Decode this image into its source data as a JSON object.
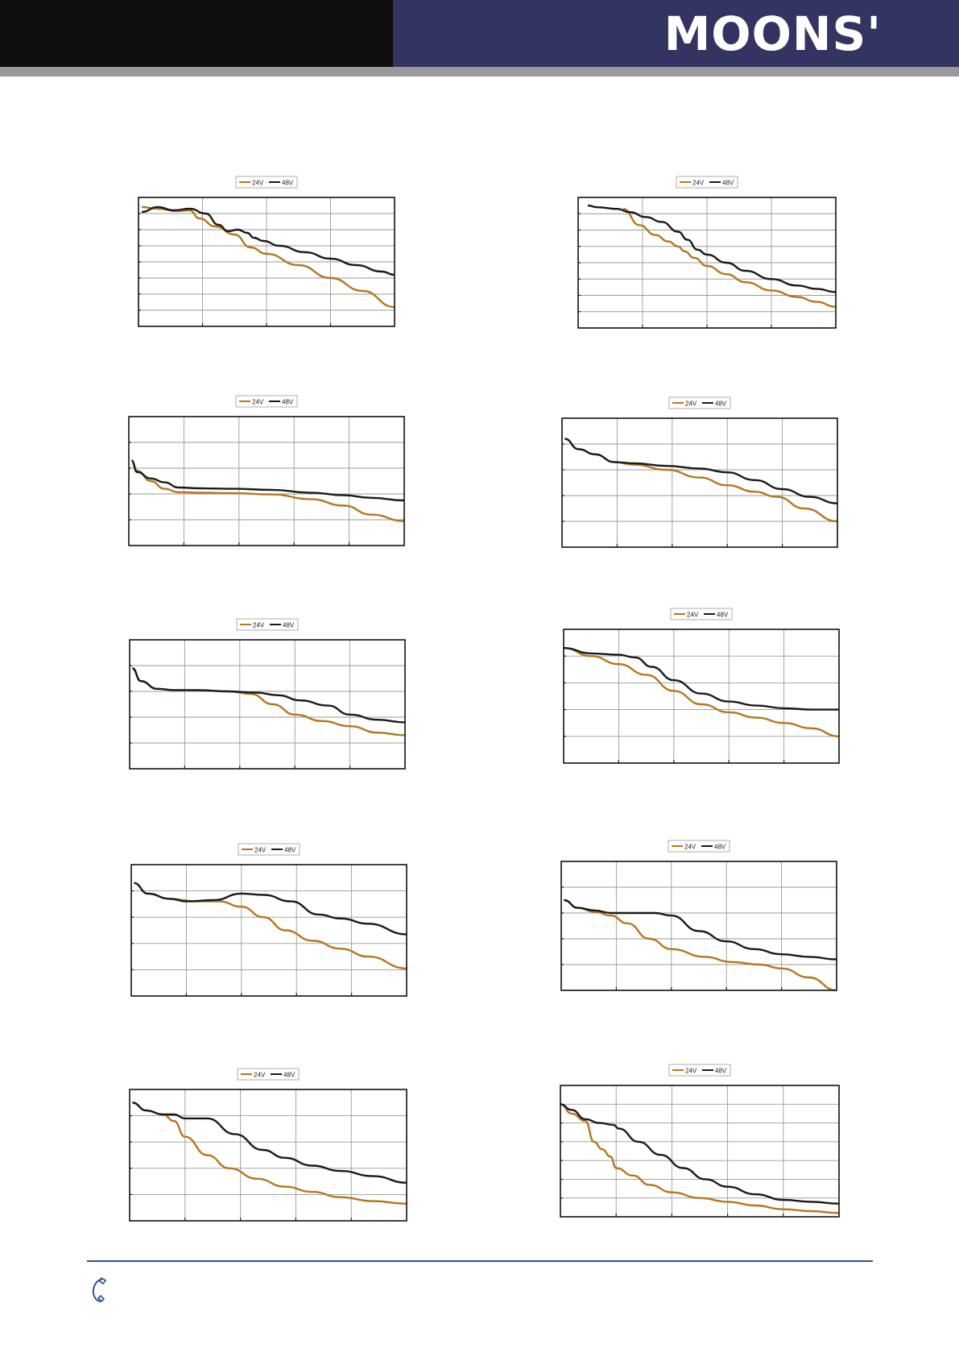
{
  "header": {
    "brand": "MOONS'",
    "colors": {
      "left_band": "#0e0e0e",
      "right_band": "#343462",
      "strip": "#9a9a9a"
    }
  },
  "series_colors": {
    "24V": "#b5761f",
    "48V": "#1a1a1a"
  },
  "footer": {
    "icon": "phone-icon",
    "line_color": "#2f4d9a"
  },
  "chart_data": [
    {
      "type": "line",
      "grid": true,
      "legend": "top-center",
      "cols": 4,
      "rows": 8,
      "xlim": [
        0,
        4
      ],
      "ylim": [
        0,
        8
      ],
      "series": [
        {
          "name": "24V",
          "x": [
            0.05,
            0.3,
            0.6,
            0.8,
            0.95,
            1.2,
            1.5,
            1.75,
            2.0,
            2.5,
            3.0,
            3.5,
            4.0
          ],
          "y": [
            7.4,
            7.3,
            7.15,
            7.2,
            6.7,
            6.2,
            5.7,
            4.9,
            4.5,
            3.8,
            3.0,
            2.2,
            1.2
          ]
        },
        {
          "name": "48V",
          "x": [
            0.05,
            0.3,
            0.55,
            0.8,
            1.05,
            1.25,
            1.4,
            1.55,
            1.7,
            1.8,
            1.95,
            2.2,
            2.6,
            3.0,
            3.4,
            3.8,
            4.0
          ],
          "y": [
            7.1,
            7.4,
            7.2,
            7.3,
            7.0,
            6.3,
            5.9,
            6.0,
            5.8,
            5.5,
            5.3,
            5.0,
            4.6,
            4.2,
            3.8,
            3.4,
            3.2
          ]
        }
      ]
    },
    {
      "type": "line",
      "grid": true,
      "legend": "top-center",
      "cols": 4,
      "rows": 8,
      "xlim": [
        0,
        4
      ],
      "ylim": [
        0,
        8
      ],
      "series": [
        {
          "name": "24V",
          "x": [
            0.7,
            0.95,
            1.2,
            1.4,
            1.55,
            1.65,
            1.8,
            2.0,
            2.3,
            2.6,
            3.0,
            3.4,
            3.7,
            4.0
          ],
          "y": [
            7.3,
            6.3,
            5.7,
            5.3,
            5.0,
            4.7,
            4.3,
            3.8,
            3.3,
            2.8,
            2.3,
            1.9,
            1.6,
            1.3
          ]
        },
        {
          "name": "48V",
          "x": [
            0.15,
            0.3,
            0.6,
            0.8,
            1.05,
            1.3,
            1.55,
            1.7,
            1.85,
            2.0,
            2.3,
            2.6,
            3.0,
            3.4,
            3.7,
            4.0
          ],
          "y": [
            7.5,
            7.4,
            7.3,
            7.1,
            6.8,
            6.5,
            5.9,
            5.4,
            4.8,
            4.5,
            4.0,
            3.5,
            3.0,
            2.6,
            2.4,
            2.2
          ]
        }
      ]
    },
    {
      "type": "line",
      "grid": true,
      "legend": "top-center",
      "cols": 5,
      "rows": 5,
      "xlim": [
        0,
        5
      ],
      "ylim": [
        0,
        5
      ],
      "series": [
        {
          "name": "24V",
          "x": [
            0.05,
            0.15,
            0.4,
            0.65,
            0.9,
            1.3,
            1.9,
            2.6,
            3.3,
            3.9,
            4.4,
            5.0
          ],
          "y": [
            3.3,
            2.9,
            2.5,
            2.2,
            2.07,
            2.05,
            2.03,
            1.98,
            1.8,
            1.55,
            1.2,
            0.95
          ]
        },
        {
          "name": "48V",
          "x": [
            0.05,
            0.15,
            0.4,
            0.65,
            0.9,
            1.3,
            1.9,
            2.6,
            3.3,
            3.9,
            4.4,
            5.0
          ],
          "y": [
            3.3,
            2.85,
            2.6,
            2.45,
            2.25,
            2.22,
            2.2,
            2.16,
            2.05,
            1.95,
            1.85,
            1.75
          ]
        }
      ]
    },
    {
      "type": "line",
      "grid": true,
      "legend": "top-center",
      "cols": 5,
      "rows": 5,
      "xlim": [
        0,
        5
      ],
      "ylim": [
        0,
        5
      ],
      "series": [
        {
          "name": "24V",
          "x": [
            0.05,
            0.3,
            0.6,
            0.95,
            1.3,
            1.9,
            2.5,
            3.0,
            3.5,
            3.9,
            4.4,
            5.0
          ],
          "y": [
            4.2,
            3.8,
            3.6,
            3.3,
            3.2,
            3.0,
            2.7,
            2.4,
            2.15,
            1.95,
            1.5,
            1.0
          ]
        },
        {
          "name": "48V",
          "x": [
            0.05,
            0.3,
            0.6,
            0.95,
            1.3,
            1.9,
            2.5,
            3.0,
            3.5,
            4.0,
            4.5,
            5.0
          ],
          "y": [
            4.2,
            3.8,
            3.6,
            3.3,
            3.25,
            3.15,
            3.05,
            2.9,
            2.6,
            2.25,
            1.95,
            1.7
          ]
        }
      ]
    },
    {
      "type": "line",
      "grid": true,
      "legend": "top-center",
      "cols": 5,
      "rows": 5,
      "xlim": [
        0,
        5
      ],
      "ylim": [
        0,
        5
      ],
      "series": [
        {
          "name": "24V",
          "x": [
            0.05,
            0.2,
            0.5,
            0.8,
            1.2,
            1.8,
            2.2,
            2.6,
            3.0,
            3.5,
            4.0,
            4.5,
            5.0
          ],
          "y": [
            3.9,
            3.4,
            3.1,
            3.05,
            3.05,
            3.0,
            2.9,
            2.5,
            2.1,
            1.85,
            1.65,
            1.4,
            1.3
          ]
        },
        {
          "name": "48V",
          "x": [
            0.05,
            0.2,
            0.5,
            0.8,
            1.2,
            1.8,
            2.3,
            2.7,
            3.1,
            3.6,
            4.0,
            4.5,
            5.0
          ],
          "y": [
            3.9,
            3.4,
            3.1,
            3.05,
            3.05,
            3.0,
            2.95,
            2.85,
            2.65,
            2.45,
            2.1,
            1.9,
            1.8
          ]
        }
      ]
    },
    {
      "type": "line",
      "grid": true,
      "legend": "top-center",
      "cols": 5,
      "rows": 5,
      "xlim": [
        0,
        5
      ],
      "ylim": [
        0,
        5
      ],
      "series": [
        {
          "name": "24V",
          "x": [
            0.0,
            0.5,
            1.0,
            1.5,
            2.0,
            2.5,
            3.0,
            3.5,
            4.0,
            4.5,
            5.0
          ],
          "y": [
            4.3,
            4.0,
            3.7,
            3.3,
            2.7,
            2.2,
            1.9,
            1.7,
            1.5,
            1.3,
            1.0
          ]
        },
        {
          "name": "48V",
          "x": [
            0.0,
            0.5,
            1.0,
            1.3,
            1.6,
            2.0,
            2.5,
            3.0,
            3.5,
            4.0,
            4.5,
            5.0
          ],
          "y": [
            4.3,
            4.1,
            4.05,
            3.95,
            3.6,
            3.1,
            2.6,
            2.3,
            2.15,
            2.05,
            2.0,
            2.0
          ]
        }
      ]
    },
    {
      "type": "line",
      "grid": true,
      "legend": "top-center",
      "cols": 5,
      "rows": 5,
      "xlim": [
        0,
        5
      ],
      "ylim": [
        0,
        5
      ],
      "series": [
        {
          "name": "24V",
          "x": [
            0.05,
            0.3,
            0.7,
            1.2,
            1.6,
            2.0,
            2.4,
            2.8,
            3.3,
            3.8,
            4.3,
            5.0
          ],
          "y": [
            4.3,
            3.9,
            3.7,
            3.6,
            3.6,
            3.4,
            3.0,
            2.5,
            2.1,
            1.8,
            1.5,
            1.05
          ]
        },
        {
          "name": "48V",
          "x": [
            0.05,
            0.3,
            0.7,
            1.0,
            1.5,
            2.0,
            2.4,
            2.9,
            3.4,
            3.8,
            4.3,
            5.0
          ],
          "y": [
            4.3,
            3.9,
            3.7,
            3.6,
            3.65,
            3.9,
            3.85,
            3.6,
            3.1,
            2.95,
            2.75,
            2.35
          ]
        }
      ]
    },
    {
      "type": "line",
      "grid": true,
      "legend": "top-center",
      "cols": 5,
      "rows": 5,
      "xlim": [
        0,
        5
      ],
      "ylim": [
        0,
        5
      ],
      "series": [
        {
          "name": "24V",
          "x": [
            0.05,
            0.3,
            0.6,
            0.9,
            1.2,
            1.6,
            2.0,
            2.6,
            3.1,
            3.6,
            4.0,
            4.5,
            5.0
          ],
          "y": [
            3.5,
            3.2,
            3.05,
            2.9,
            2.6,
            2.0,
            1.6,
            1.3,
            1.1,
            1.0,
            0.85,
            0.5,
            0.0
          ]
        },
        {
          "name": "48V",
          "x": [
            0.05,
            0.3,
            0.6,
            0.9,
            1.3,
            1.7,
            2.0,
            2.5,
            3.0,
            3.5,
            4.0,
            4.5,
            5.0
          ],
          "y": [
            3.5,
            3.2,
            3.1,
            3.0,
            3.0,
            3.0,
            2.9,
            2.3,
            1.9,
            1.6,
            1.4,
            1.3,
            1.2
          ]
        }
      ]
    },
    {
      "type": "line",
      "grid": true,
      "legend": "top-center",
      "cols": 5,
      "rows": 5,
      "xlim": [
        0,
        5
      ],
      "ylim": [
        0,
        5
      ],
      "series": [
        {
          "name": "24V",
          "x": [
            0.05,
            0.3,
            0.6,
            0.8,
            1.0,
            1.4,
            1.8,
            2.3,
            2.8,
            3.3,
            3.8,
            4.4,
            5.0
          ],
          "y": [
            4.5,
            4.2,
            4.05,
            3.8,
            3.2,
            2.5,
            2.0,
            1.6,
            1.3,
            1.1,
            0.9,
            0.75,
            0.65
          ]
        },
        {
          "name": "48V",
          "x": [
            0.05,
            0.3,
            0.6,
            0.8,
            1.0,
            1.4,
            1.9,
            2.4,
            2.8,
            3.3,
            3.8,
            4.4,
            5.0
          ],
          "y": [
            4.5,
            4.2,
            4.05,
            4.05,
            3.9,
            3.9,
            3.3,
            2.7,
            2.4,
            2.1,
            1.9,
            1.7,
            1.45
          ]
        }
      ]
    },
    {
      "type": "line",
      "grid": true,
      "legend": "top-center",
      "cols": 5,
      "rows": 7,
      "xlim": [
        0,
        5
      ],
      "ylim": [
        0,
        7
      ],
      "series": [
        {
          "name": "24V",
          "x": [
            0.0,
            0.2,
            0.45,
            0.6,
            0.75,
            0.9,
            1.0,
            1.3,
            1.6,
            2.0,
            2.5,
            3.0,
            3.5,
            4.0,
            4.5,
            5.0
          ],
          "y": [
            6.0,
            5.5,
            5.1,
            4.0,
            3.6,
            3.2,
            2.6,
            2.2,
            1.7,
            1.3,
            1.0,
            0.8,
            0.6,
            0.4,
            0.3,
            0.2
          ]
        },
        {
          "name": "48V",
          "x": [
            0.0,
            0.2,
            0.45,
            0.7,
            0.95,
            1.05,
            1.4,
            1.8,
            2.2,
            2.6,
            3.0,
            3.5,
            4.0,
            4.5,
            5.0
          ],
          "y": [
            6.0,
            5.7,
            5.2,
            5.0,
            4.9,
            4.7,
            4.0,
            3.3,
            2.6,
            2.0,
            1.6,
            1.2,
            0.9,
            0.8,
            0.7
          ]
        }
      ]
    }
  ]
}
